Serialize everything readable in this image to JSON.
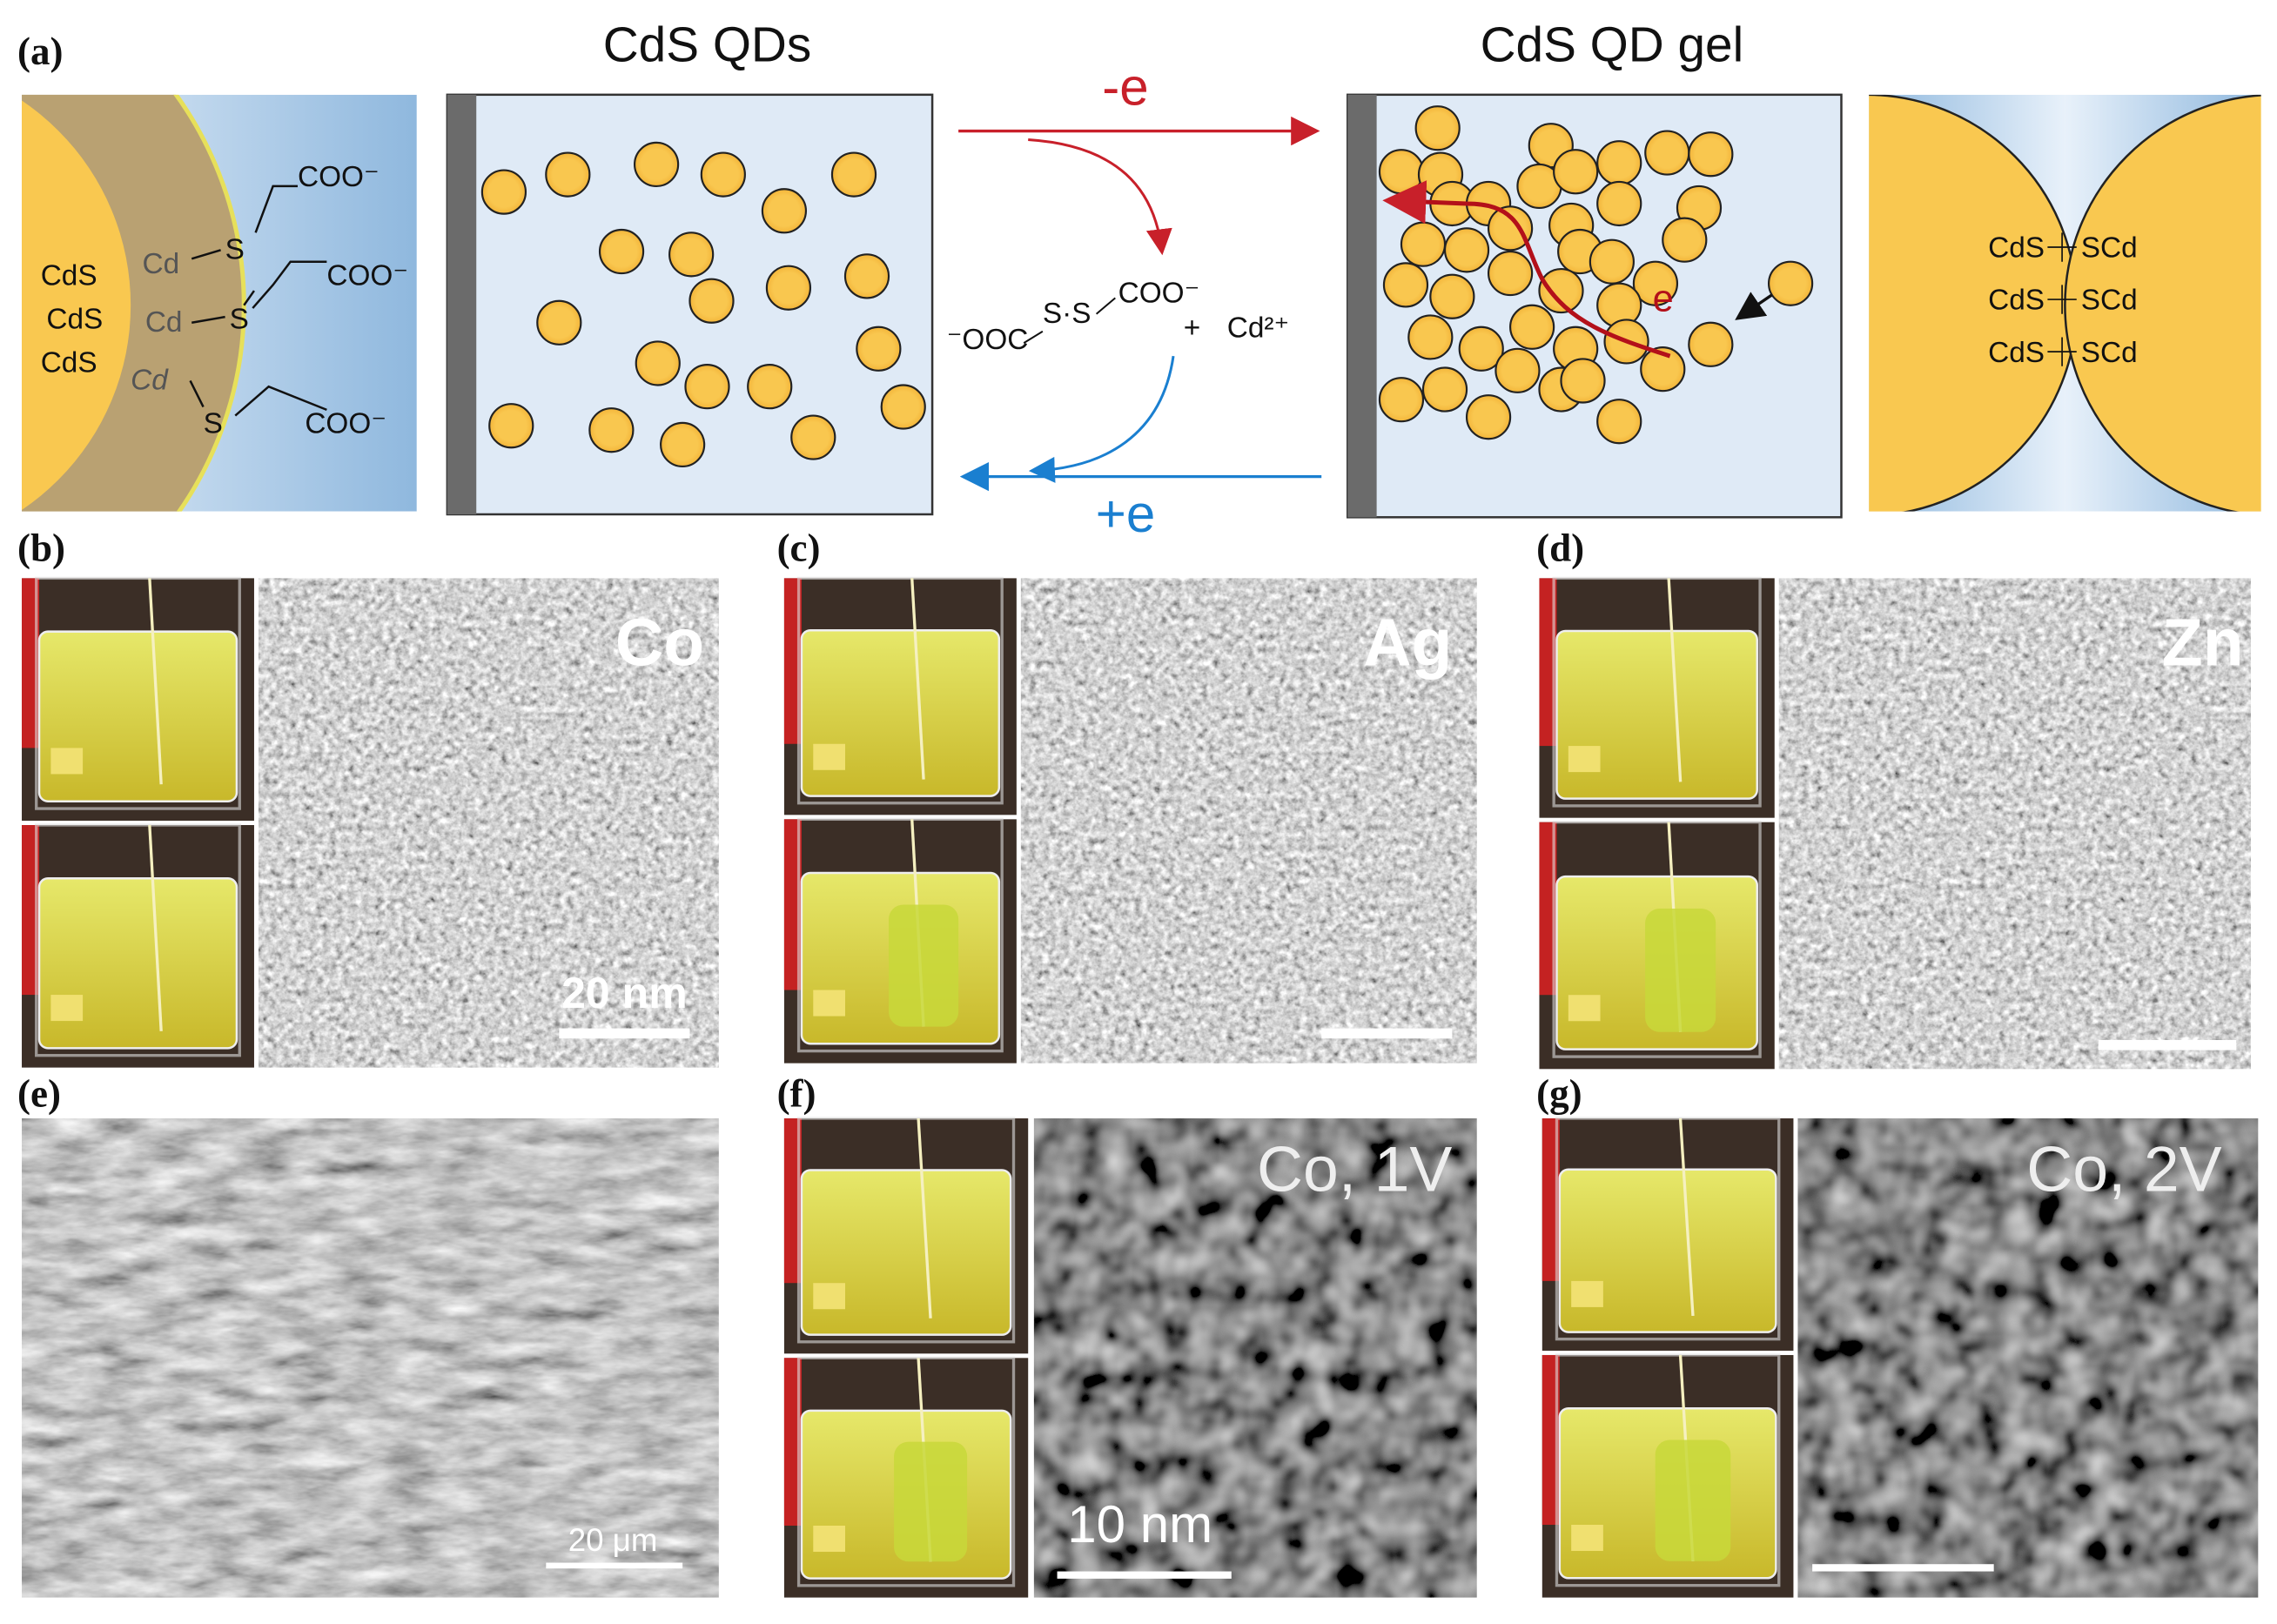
{
  "panel_labels": [
    "(a)",
    "(b)",
    "(c)",
    "(d)",
    "(e)",
    "(f)",
    "(g)"
  ],
  "panel_a": {
    "qds_title": "CdS QDs",
    "gel_title": "CdS QD gel",
    "oxidation": "-e",
    "reduction": "+e",
    "electron": "e",
    "ligand_panel": {
      "core": [
        "CdS",
        "CdS",
        "CdS"
      ],
      "surface": [
        "Cd",
        "Cd",
        "Cd"
      ],
      "thiol": [
        "S",
        "S",
        "S"
      ],
      "carboxylate": [
        "COO⁻",
        "COO⁻",
        "COO⁻"
      ]
    },
    "products": {
      "disulfide_left": "⁻OOC",
      "disulfide_middle": "S·S",
      "disulfide_right": "COO⁻",
      "plus": "+",
      "cation": "Cd²⁺"
    },
    "bond_panel": {
      "left": [
        "CdS",
        "CdS",
        "CdS"
      ],
      "right": [
        "SCd",
        "SCd",
        "SCd"
      ]
    }
  },
  "panel_b": {
    "metal": "Co",
    "scale_bar": "20 nm"
  },
  "panel_c": {
    "metal": "Ag"
  },
  "panel_d": {
    "metal": "Zn"
  },
  "panel_e": {
    "scale_bar": "20 μm"
  },
  "panel_f": {
    "condition": "Co, 1V",
    "scale_bar": "10 nm"
  },
  "panel_g": {
    "condition": "Co, 2V"
  }
}
